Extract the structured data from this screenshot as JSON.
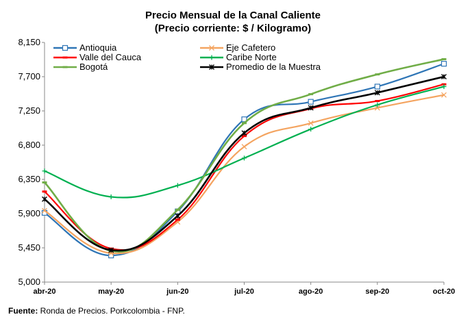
{
  "chart_data": {
    "type": "line",
    "title": "Precio Mensual de la Canal Caliente",
    "subtitle": "(Precio corriente: $ / Kilogramo)",
    "xlabel": "",
    "ylabel": "",
    "categories": [
      "abr-20",
      "may-20",
      "jun-20",
      "jul-20",
      "ago-20",
      "sep-20",
      "oct-20"
    ],
    "ylim": [
      5000,
      8150
    ],
    "yticks": [
      "5,000",
      "5,450",
      "5,900",
      "6,350",
      "6,800",
      "7,250",
      "7,700",
      "8,150"
    ],
    "grid": false,
    "legend_position": "top",
    "series": [
      {
        "name": "Antioquia",
        "color": "#2e75b6",
        "marker": "square",
        "values": [
          5910,
          5350,
          5930,
          7140,
          7370,
          7570,
          7870
        ]
      },
      {
        "name": "Eje Cafetero",
        "color": "#f4a460",
        "marker": "x",
        "values": [
          5940,
          5380,
          5790,
          6780,
          7090,
          7290,
          7460
        ]
      },
      {
        "name": "Valle del Cauca",
        "color": "#ff0000",
        "marker": "dash",
        "values": [
          6190,
          5440,
          5820,
          6920,
          7280,
          7380,
          7600
        ]
      },
      {
        "name": "Caribe Norte",
        "color": "#00b050",
        "marker": "plus",
        "values": [
          6460,
          6120,
          6270,
          6630,
          7010,
          7330,
          7570
        ]
      },
      {
        "name": "Bogotá",
        "color": "#70ad47",
        "marker": "dash",
        "values": [
          6310,
          5410,
          5950,
          7090,
          7470,
          7730,
          7930
        ]
      },
      {
        "name": "Promedio de la Muestra",
        "color": "#000000",
        "marker": "star",
        "values": [
          6090,
          5420,
          5870,
          6960,
          7290,
          7490,
          7700
        ]
      }
    ]
  },
  "source": {
    "label": "Fuente:",
    "text": " Ronda de Precios. Porkcolombia   - FNP."
  }
}
